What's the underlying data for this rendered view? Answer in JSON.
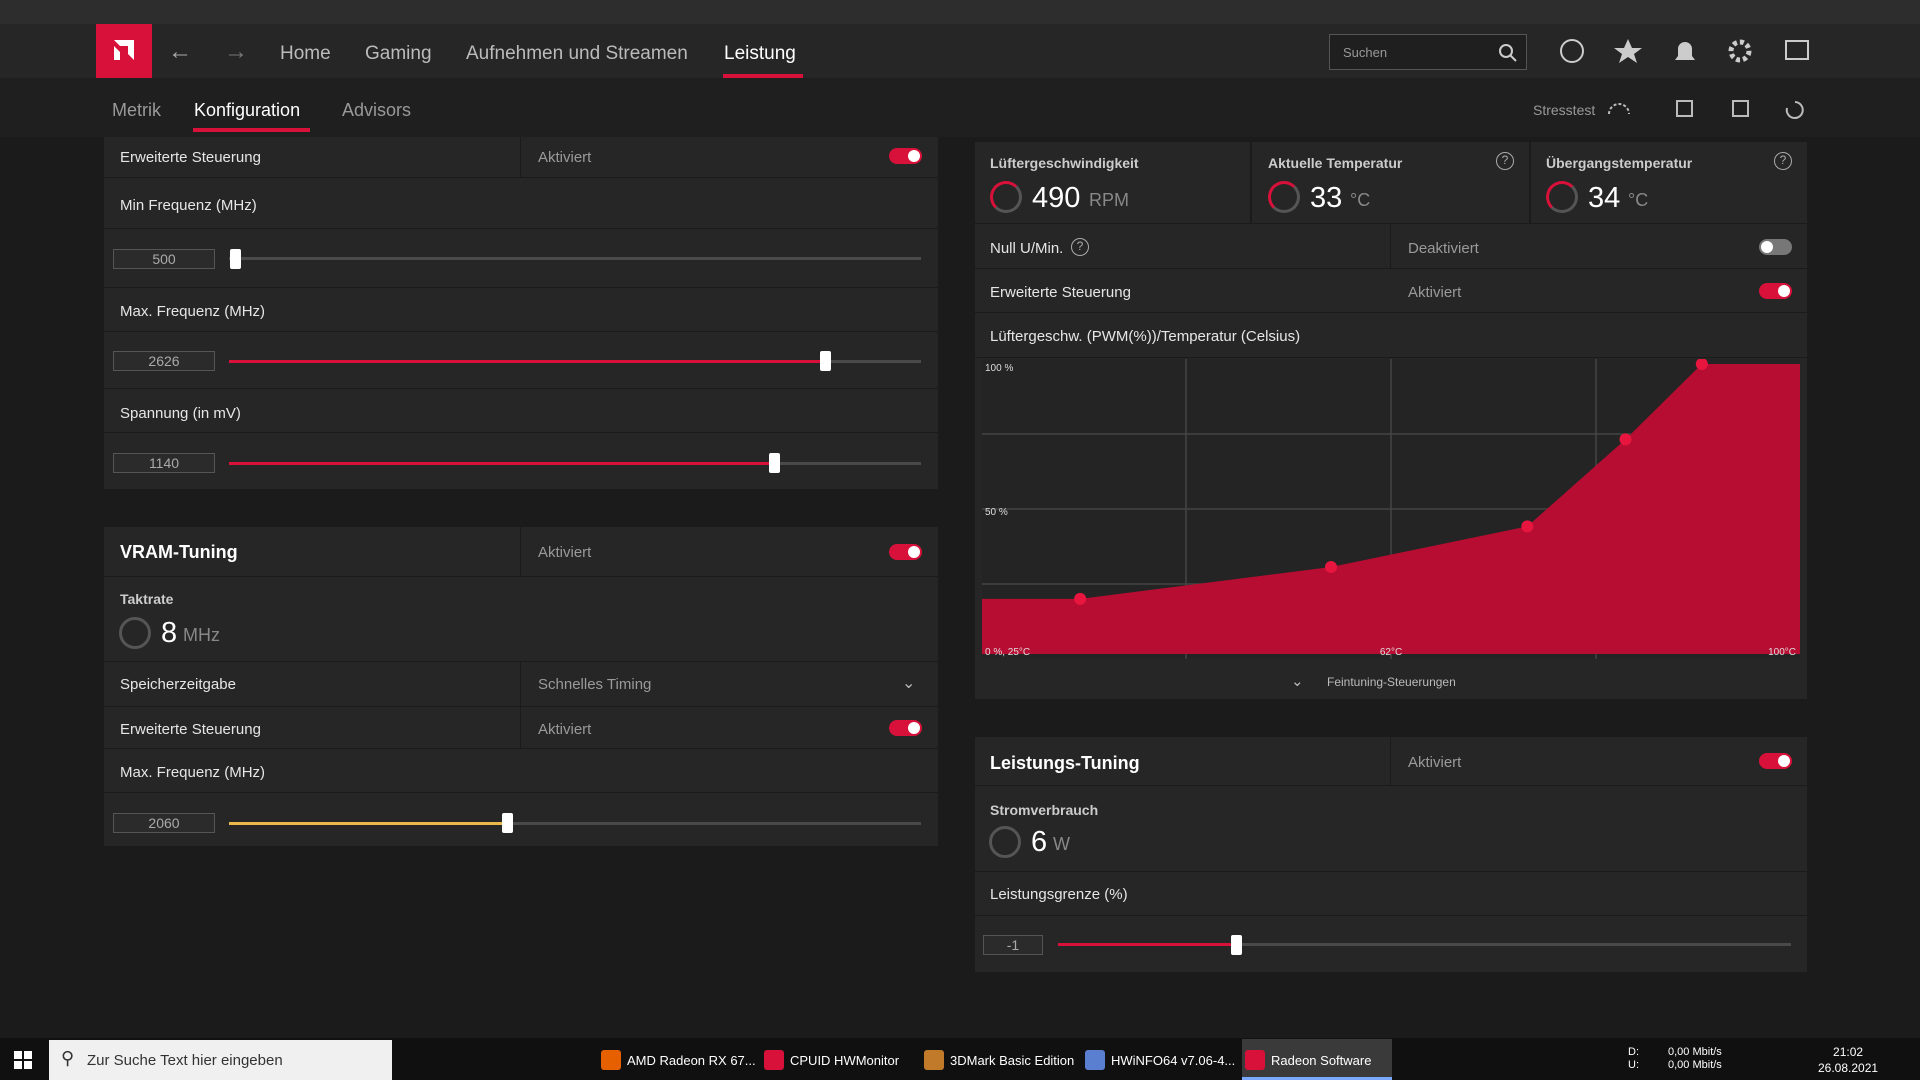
{
  "nav": {
    "tabs": [
      "Home",
      "Gaming",
      "Aufnehmen und Streamen",
      "Leistung"
    ],
    "search_placeholder": "Suchen"
  },
  "subnav": {
    "tabs": [
      "Metrik",
      "Konfiguration",
      "Advisors"
    ],
    "stresstest": "Stresstest"
  },
  "gpu_tuning": {
    "advanced_control": {
      "label": "Erweiterte Steuerung",
      "state": "Aktiviert"
    },
    "min_freq": {
      "label": "Min Frequenz (MHz)",
      "value": 500
    },
    "max_freq": {
      "label": "Max. Frequenz (MHz)",
      "value": 2626
    },
    "voltage": {
      "label": "Spannung (in mV)",
      "value": 1140
    }
  },
  "vram_tuning": {
    "title": "VRAM-Tuning",
    "state": "Aktiviert",
    "clock": {
      "label": "Taktrate",
      "value": 8,
      "unit": "MHz"
    },
    "memory_timing": {
      "label": "Speicherzeitgabe",
      "value": "Schnelles Timing"
    },
    "advanced_control": {
      "label": "Erweiterte Steuerung",
      "state": "Aktiviert"
    },
    "max_freq": {
      "label": "Max. Frequenz (MHz)",
      "value": 2060
    }
  },
  "fan_tuning": {
    "metrics": [
      {
        "label": "Lüftergeschwindigkeit",
        "value": 490,
        "unit": "RPM"
      },
      {
        "label": "Aktuelle Temperatur",
        "value": 33,
        "unit": "°C"
      },
      {
        "label": "Übergangstemperatur",
        "value": 34,
        "unit": "°C"
      }
    ],
    "zero_rpm": {
      "label": "Null U/Min.",
      "state": "Deaktiviert"
    },
    "advanced_control": {
      "label": "Erweiterte Steuerung",
      "state": "Aktiviert"
    },
    "curve": {
      "title": "Lüftergeschw. (PWM(%))/Temperatur (Celsius)",
      "y_labels": [
        "100 %",
        "50 %"
      ],
      "x_labels": [
        "0 %, 25°C",
        "62°C",
        "100°C"
      ],
      "temps": [
        34,
        57,
        75,
        84,
        91
      ],
      "pwm": [
        19,
        30,
        44,
        74,
        100
      ],
      "xlim": [
        25,
        100
      ],
      "ylim": [
        0,
        100
      ]
    },
    "fine_tuning": "Feintuning-Steuerungen"
  },
  "power_tuning": {
    "title": "Leistungs-Tuning",
    "state": "Aktiviert",
    "consumption": {
      "label": "Stromverbrauch",
      "value": 6,
      "unit": "W"
    },
    "limit": {
      "label": "Leistungsgrenze (%)",
      "value": -1
    }
  },
  "taskbar": {
    "search": "Zur Suche Text hier eingeben",
    "apps": [
      "AMD Radeon RX 67...",
      "CPUID HWMonitor",
      "3DMark Basic Edition",
      "HWiNFO64 v7.06-4...",
      "Radeon Software"
    ],
    "net_labels": [
      "D:",
      "U:"
    ],
    "net_values": [
      "0,00 Mbit/s",
      "0,00 Mbit/s"
    ],
    "time": "21:02",
    "date": "26.08.2021"
  }
}
